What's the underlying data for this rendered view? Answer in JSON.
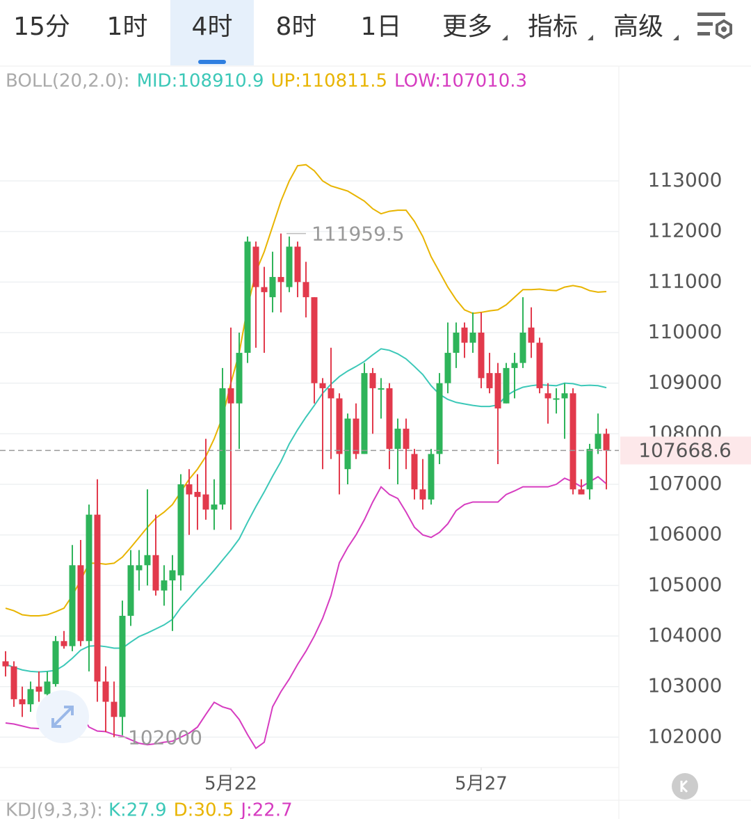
{
  "tabs": [
    {
      "label": "15分"
    },
    {
      "label": "1时"
    },
    {
      "label": "4时",
      "selected": true
    },
    {
      "label": "8时"
    },
    {
      "label": "1日"
    },
    {
      "label": "更多",
      "dropdown": true
    },
    {
      "label": "指标",
      "dropdown": true
    },
    {
      "label": "高级",
      "dropdown": true
    }
  ],
  "chart_data": {
    "type": "candlestick",
    "indicator_title": "BOLL(20,2.0):",
    "categories": [
      null,
      null,
      null,
      null,
      null,
      null,
      null,
      null,
      null,
      null,
      null,
      null,
      null,
      null,
      null,
      null,
      null,
      null,
      null,
      null,
      null,
      null,
      null,
      null,
      null,
      null,
      null,
      "5月22",
      null,
      null,
      null,
      null,
      null,
      null,
      null,
      null,
      null,
      null,
      null,
      null,
      null,
      null,
      null,
      null,
      null,
      null,
      null,
      null,
      null,
      null,
      null,
      null,
      null,
      null,
      null,
      null,
      null,
      "5月27",
      null,
      null,
      null,
      null,
      null,
      null,
      null,
      null,
      null,
      null,
      null,
      null,
      null,
      null,
      null
    ],
    "open": [
      103500,
      103400,
      102750,
      102650,
      103000,
      102850,
      103050,
      103900,
      103800,
      105400,
      103900,
      106400,
      103100,
      102700,
      102400,
      104400,
      105300,
      105400,
      105600,
      104900,
      105100,
      105200,
      107000,
      106850,
      106800,
      106500,
      106600,
      108900,
      108600,
      109600,
      111700,
      110900,
      110700,
      111100,
      110900,
      111700,
      111000,
      110700,
      109000,
      108900,
      108700,
      107300,
      108300,
      107600,
      109200,
      108900,
      108900,
      107700,
      108100,
      107600,
      106900,
      106700,
      107600,
      109000,
      109600,
      110100,
      109800,
      110000,
      109200,
      109200,
      108600,
      109300,
      109400,
      110100,
      109800,
      108800,
      108700,
      108700,
      108800,
      106900,
      106900,
      107700,
      108000
    ],
    "high": [
      103700,
      103500,
      103000,
      103100,
      103300,
      103300,
      104000,
      104100,
      105800,
      105900,
      106600,
      107100,
      103400,
      103100,
      104700,
      105700,
      105700,
      106900,
      106400,
      105400,
      105600,
      107200,
      107300,
      107200,
      107900,
      107100,
      109300,
      110100,
      110000,
      111900,
      111800,
      111300,
      111600,
      111959.5,
      111900,
      111800,
      111400,
      110700,
      109100,
      109700,
      108800,
      108400,
      108600,
      109400,
      109300,
      109100,
      109000,
      108300,
      108300,
      107700,
      107500,
      107700,
      109200,
      110200,
      110200,
      110200,
      110400,
      110400,
      109600,
      109400,
      109400,
      109600,
      110700,
      110500,
      109900,
      109000,
      108900,
      109000,
      108900,
      107100,
      107800,
      108400,
      108100
    ],
    "low": [
      103200,
      102600,
      102400,
      102500,
      102700,
      102800,
      103000,
      103750,
      103700,
      103800,
      103300,
      102700,
      102100,
      102000,
      102038.8,
      104200,
      104900,
      105000,
      104800,
      104600,
      104100,
      104900,
      106000,
      106100,
      106300,
      106100,
      106500,
      106100,
      107700,
      109400,
      109700,
      109600,
      110400,
      110400,
      110800,
      110700,
      110300,
      108600,
      107300,
      107500,
      106800,
      107000,
      107500,
      107600,
      108000,
      108300,
      107300,
      107000,
      107300,
      106700,
      106500,
      106600,
      107400,
      108800,
      109300,
      109500,
      109600,
      108900,
      108800,
      107400,
      108600,
      108700,
      109300,
      109500,
      108800,
      108200,
      108400,
      107900,
      106800,
      106800,
      106700,
      107600,
      106900
    ],
    "close": [
      103400,
      102750,
      102650,
      102950,
      102900,
      103100,
      103900,
      103800,
      105400,
      103900,
      106400,
      103100,
      102700,
      102400,
      104400,
      105400,
      105400,
      105600,
      104900,
      105100,
      105300,
      107000,
      106800,
      106750,
      106500,
      106600,
      108900,
      108600,
      109600,
      111800,
      110900,
      110800,
      111100,
      111000,
      111700,
      111000,
      110700,
      109000,
      108900,
      108700,
      107600,
      108300,
      107600,
      109200,
      108900,
      108900,
      107700,
      108100,
      107700,
      106900,
      106700,
      107600,
      109000,
      109600,
      110000,
      109800,
      110000,
      109100,
      108900,
      108500,
      109300,
      109400,
      110000,
      109800,
      108900,
      108700,
      108700,
      108800,
      106900,
      106800,
      107700,
      108000,
      107668.6
    ],
    "up_color": "#2eb45a",
    "down_color": "#e23a4c",
    "overlays": [
      {
        "name": "MID:",
        "color": "#3cc8b8",
        "values": [
          103440,
          103380,
          103330,
          103300,
          103290,
          103300,
          103320,
          103420,
          103560,
          103720,
          103800,
          103810,
          103790,
          103760,
          103760,
          103880,
          103990,
          104060,
          104140,
          104220,
          104330,
          104560,
          104740,
          104930,
          105110,
          105300,
          105500,
          105700,
          105920,
          106250,
          106560,
          106850,
          107160,
          107450,
          107800,
          108080,
          108330,
          108560,
          108800,
          108980,
          109130,
          109240,
          109330,
          109430,
          109560,
          109680,
          109650,
          109580,
          109480,
          109330,
          109170,
          108950,
          108780,
          108680,
          108620,
          108590,
          108560,
          108540,
          108540,
          108570,
          108750,
          108850,
          108920,
          108950,
          108970,
          108960,
          108950,
          109000,
          108990,
          108950,
          108960,
          108950,
          108910.9
        ]
      },
      {
        "name": "UP:",
        "color": "#e8b400",
        "values": [
          104550,
          104500,
          104420,
          104400,
          104400,
          104420,
          104480,
          104550,
          104800,
          105100,
          105440,
          105440,
          105420,
          105440,
          105560,
          105750,
          105950,
          106150,
          106330,
          106450,
          106600,
          106850,
          107100,
          107300,
          107550,
          107900,
          108330,
          109000,
          109600,
          110500,
          111200,
          111600,
          112100,
          112600,
          113000,
          113300,
          113320,
          113200,
          113000,
          112900,
          112850,
          112800,
          112700,
          112600,
          112450,
          112350,
          112400,
          112420,
          112420,
          112200,
          111900,
          111500,
          111200,
          110900,
          110650,
          110450,
          110380,
          110400,
          110430,
          110450,
          110550,
          110700,
          110850,
          110850,
          110860,
          110840,
          110830,
          110900,
          110930,
          110900,
          110830,
          110800,
          110811.5
        ]
      },
      {
        "name": "LOW:",
        "color": "#d63cc0",
        "values": [
          102280,
          102260,
          102220,
          102180,
          102170,
          102170,
          102170,
          102180,
          102300,
          102470,
          102200,
          102120,
          102110,
          102050,
          102020,
          101950,
          101880,
          101850,
          101870,
          101900,
          101920,
          102000,
          102080,
          102200,
          102450,
          102690,
          102600,
          102550,
          102350,
          102050,
          101780,
          101900,
          102600,
          102900,
          103150,
          103440,
          103700,
          104000,
          104350,
          104800,
          105450,
          105750,
          106000,
          106300,
          106650,
          106950,
          106800,
          106720,
          106450,
          106150,
          106000,
          105950,
          106050,
          106220,
          106480,
          106600,
          106650,
          106650,
          106650,
          106650,
          106800,
          106870,
          106950,
          106950,
          106950,
          106950,
          107000,
          107120,
          107050,
          106950,
          107050,
          107150,
          107010.3
        ]
      }
    ],
    "ylim": [
      101400,
      115270
    ],
    "yticks": [
      102000,
      103000,
      104000,
      105000,
      106000,
      107000,
      108000,
      109000,
      110000,
      111000,
      112000,
      113000
    ],
    "grid": true
  },
  "kdj": {
    "title": "KDJ(9,3,3):",
    "items": [
      {
        "name": "K:",
        "value": 27.9,
        "color": "#3cc8b8"
      },
      {
        "name": "D:",
        "value": 30.5,
        "color": "#e8b400"
      },
      {
        "name": "J:",
        "value": 22.7,
        "color": "#d63cc0"
      }
    ]
  }
}
